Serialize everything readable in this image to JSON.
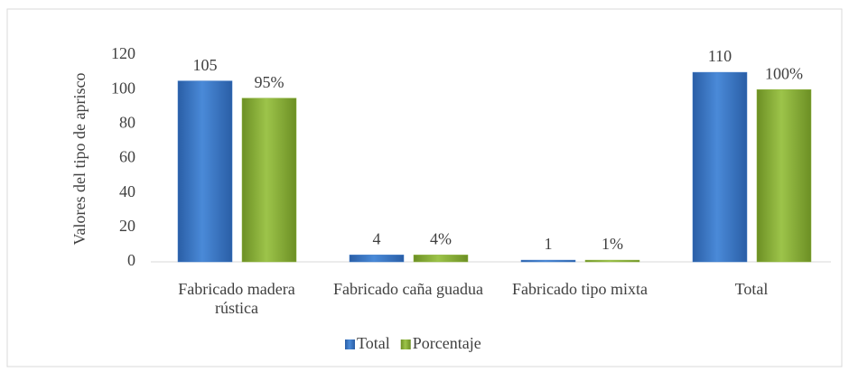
{
  "chart_data": {
    "type": "bar",
    "categories": [
      "Fabricado madera rústica",
      "Fabricado caña guadua",
      "Fabricado tipo mixta",
      "Total"
    ],
    "series": [
      {
        "name": "Total",
        "color": "#3b78c8",
        "values": [
          105,
          4,
          1,
          110
        ]
      },
      {
        "name": "Porcentaje",
        "color": "#8eb43c",
        "values": [
          95,
          4,
          1,
          100
        ],
        "value_labels": [
          "95%",
          "4%",
          "1%",
          "100%"
        ]
      }
    ],
    "y_label": "Valores del tipo de aprisco",
    "ylim": [
      0,
      120
    ],
    "yticks": [
      0,
      20,
      40,
      60,
      80,
      100,
      120
    ],
    "legend": "bottom"
  }
}
